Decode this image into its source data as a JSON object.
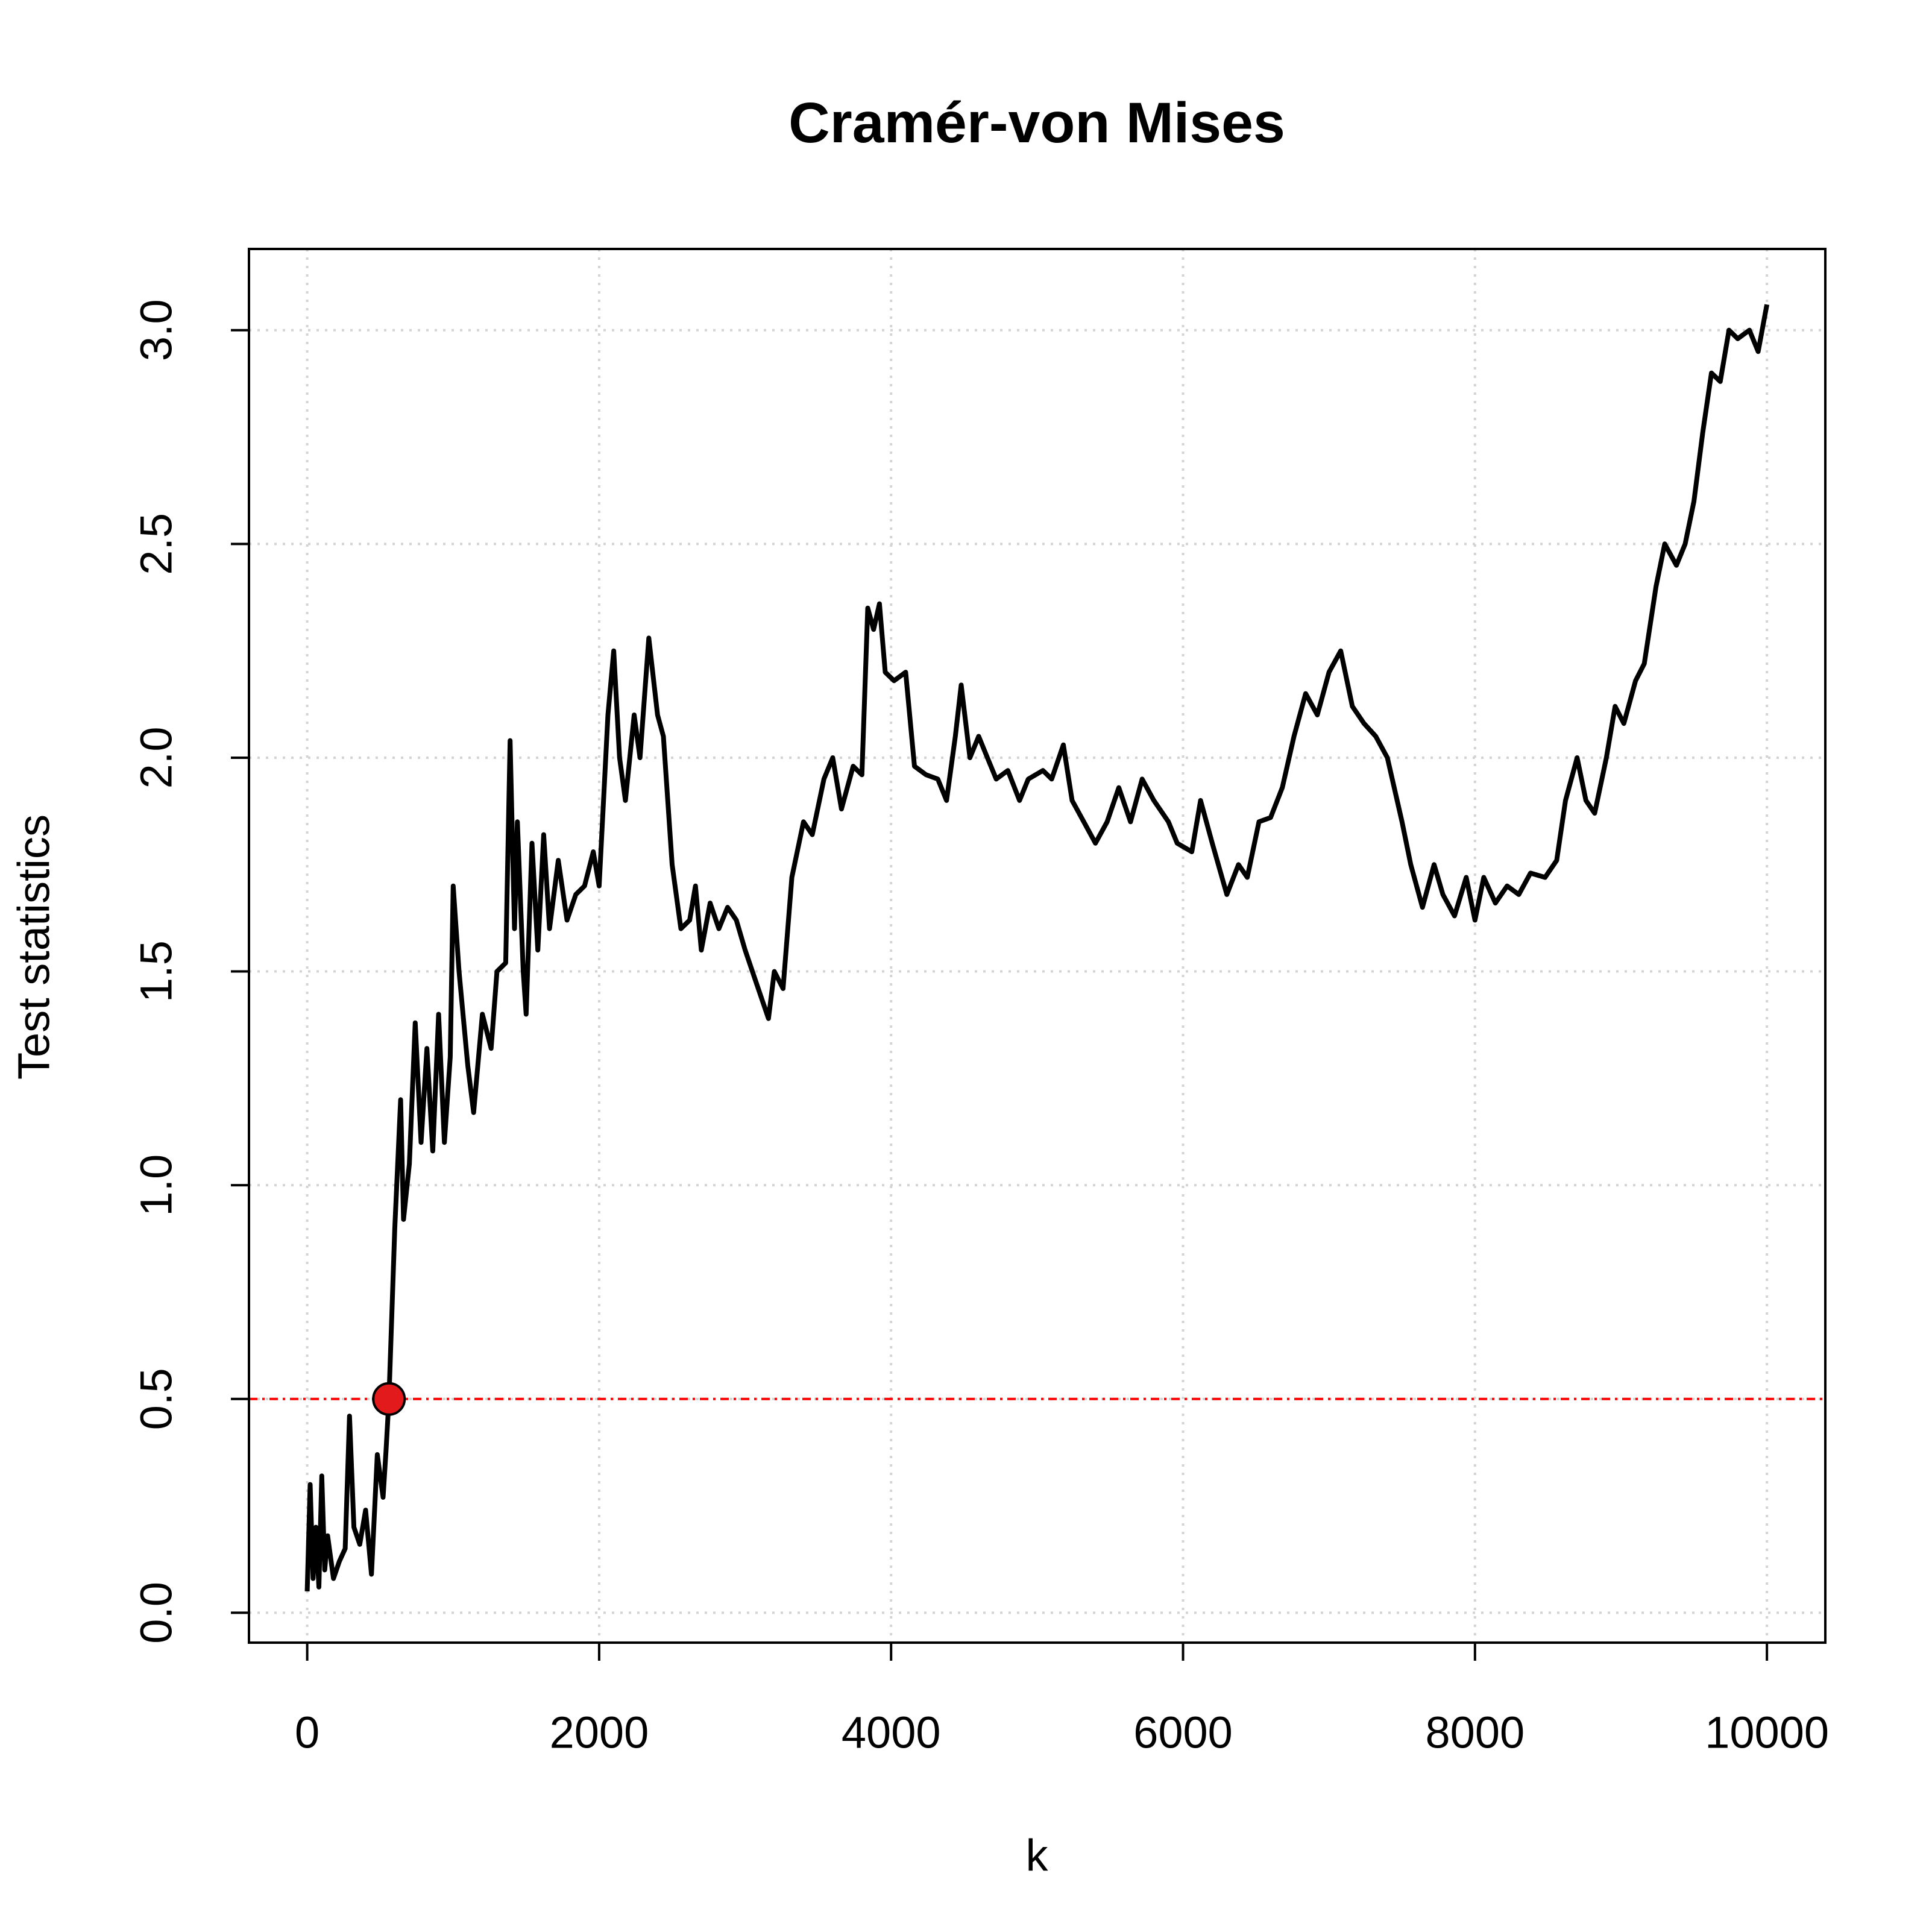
{
  "chart_data": {
    "type": "line",
    "title": "Cramér-von Mises",
    "xlabel": "k",
    "ylabel": "Test statistics",
    "x": [
      0,
      20,
      40,
      60,
      80,
      100,
      120,
      140,
      180,
      220,
      260,
      290,
      320,
      360,
      400,
      440,
      480,
      520,
      540,
      560,
      600,
      640,
      660,
      700,
      740,
      780,
      820,
      860,
      900,
      940,
      980,
      1000,
      1040,
      1100,
      1140,
      1200,
      1260,
      1300,
      1360,
      1390,
      1420,
      1440,
      1480,
      1500,
      1540,
      1580,
      1620,
      1660,
      1720,
      1780,
      1840,
      1900,
      1960,
      2000,
      2060,
      2100,
      2140,
      2180,
      2240,
      2280,
      2340,
      2400,
      2440,
      2500,
      2560,
      2620,
      2660,
      2700,
      2760,
      2820,
      2880,
      2940,
      3000,
      3080,
      3160,
      3200,
      3260,
      3320,
      3400,
      3460,
      3540,
      3600,
      3660,
      3740,
      3800,
      3840,
      3880,
      3920,
      3960,
      4020,
      4100,
      4160,
      4240,
      4320,
      4380,
      4440,
      4480,
      4540,
      4600,
      4660,
      4720,
      4800,
      4880,
      4940,
      5040,
      5100,
      5180,
      5240,
      5320,
      5400,
      5480,
      5560,
      5640,
      5720,
      5800,
      5900,
      5960,
      6060,
      6120,
      6200,
      6300,
      6380,
      6440,
      6520,
      6600,
      6680,
      6760,
      6840,
      6920,
      7000,
      7080,
      7160,
      7240,
      7320,
      7400,
      7500,
      7560,
      7640,
      7720,
      7780,
      7860,
      7940,
      8000,
      8060,
      8140,
      8220,
      8300,
      8380,
      8480,
      8560,
      8620,
      8700,
      8760,
      8820,
      8900,
      8960,
      9020,
      9100,
      9160,
      9240,
      9300,
      9380,
      9440,
      9500,
      9560,
      9620,
      9680,
      9740,
      9800,
      9880,
      9940,
      10000
    ],
    "series": [
      {
        "color": "#000000",
        "values": [
          0.05,
          0.3,
          0.08,
          0.2,
          0.06,
          0.32,
          0.1,
          0.18,
          0.08,
          0.12,
          0.15,
          0.46,
          0.2,
          0.16,
          0.24,
          0.09,
          0.37,
          0.27,
          0.38,
          0.5,
          0.9,
          1.2,
          0.92,
          1.05,
          1.38,
          1.1,
          1.32,
          1.08,
          1.4,
          1.1,
          1.3,
          1.7,
          1.5,
          1.28,
          1.17,
          1.4,
          1.32,
          1.5,
          1.52,
          2.04,
          1.6,
          1.85,
          1.5,
          1.4,
          1.8,
          1.55,
          1.82,
          1.6,
          1.76,
          1.62,
          1.68,
          1.7,
          1.78,
          1.7,
          2.1,
          2.25,
          2.0,
          1.9,
          2.1,
          2.0,
          2.28,
          2.1,
          2.05,
          1.75,
          1.6,
          1.62,
          1.7,
          1.55,
          1.66,
          1.6,
          1.65,
          1.62,
          1.55,
          1.47,
          1.39,
          1.5,
          1.46,
          1.72,
          1.85,
          1.82,
          1.95,
          2.0,
          1.88,
          1.98,
          1.96,
          2.35,
          2.3,
          2.36,
          2.2,
          2.18,
          2.2,
          1.98,
          1.96,
          1.95,
          1.9,
          2.05,
          2.17,
          2.0,
          2.05,
          2.0,
          1.95,
          1.97,
          1.9,
          1.95,
          1.97,
          1.95,
          2.03,
          1.9,
          1.85,
          1.8,
          1.85,
          1.93,
          1.85,
          1.95,
          1.9,
          1.85,
          1.8,
          1.78,
          1.9,
          1.8,
          1.68,
          1.75,
          1.72,
          1.85,
          1.86,
          1.93,
          2.05,
          2.15,
          2.1,
          2.2,
          2.25,
          2.12,
          2.08,
          2.05,
          2.0,
          1.85,
          1.75,
          1.65,
          1.75,
          1.68,
          1.63,
          1.72,
          1.62,
          1.72,
          1.66,
          1.7,
          1.68,
          1.73,
          1.72,
          1.76,
          1.9,
          2.0,
          1.9,
          1.87,
          2.0,
          2.12,
          2.08,
          2.18,
          2.22,
          2.4,
          2.5,
          2.45,
          2.5,
          2.6,
          2.76,
          2.9,
          2.88,
          3.0,
          2.98,
          3.0,
          2.95,
          3.06
        ]
      }
    ],
    "xlim": [
      -399,
      10400
    ],
    "ylim": [
      -0.07,
      3.19
    ],
    "xticks": [
      0,
      2000,
      4000,
      6000,
      8000,
      10000
    ],
    "yticks": [
      {
        "value": 0,
        "label": "0.0"
      },
      {
        "value": 0.5,
        "label": "0.5"
      },
      {
        "value": 1,
        "label": "1.0"
      },
      {
        "value": 1.5,
        "label": "1.5"
      },
      {
        "value": 2,
        "label": "2.0"
      },
      {
        "value": 2.5,
        "label": "2.5"
      },
      {
        "value": 3,
        "label": "3.0"
      }
    ],
    "grid": true,
    "threshold": {
      "y": 0.5,
      "color": "#ff0000"
    },
    "crossing": {
      "x": 560,
      "y": 0.5,
      "color": "#e31a1c"
    }
  }
}
